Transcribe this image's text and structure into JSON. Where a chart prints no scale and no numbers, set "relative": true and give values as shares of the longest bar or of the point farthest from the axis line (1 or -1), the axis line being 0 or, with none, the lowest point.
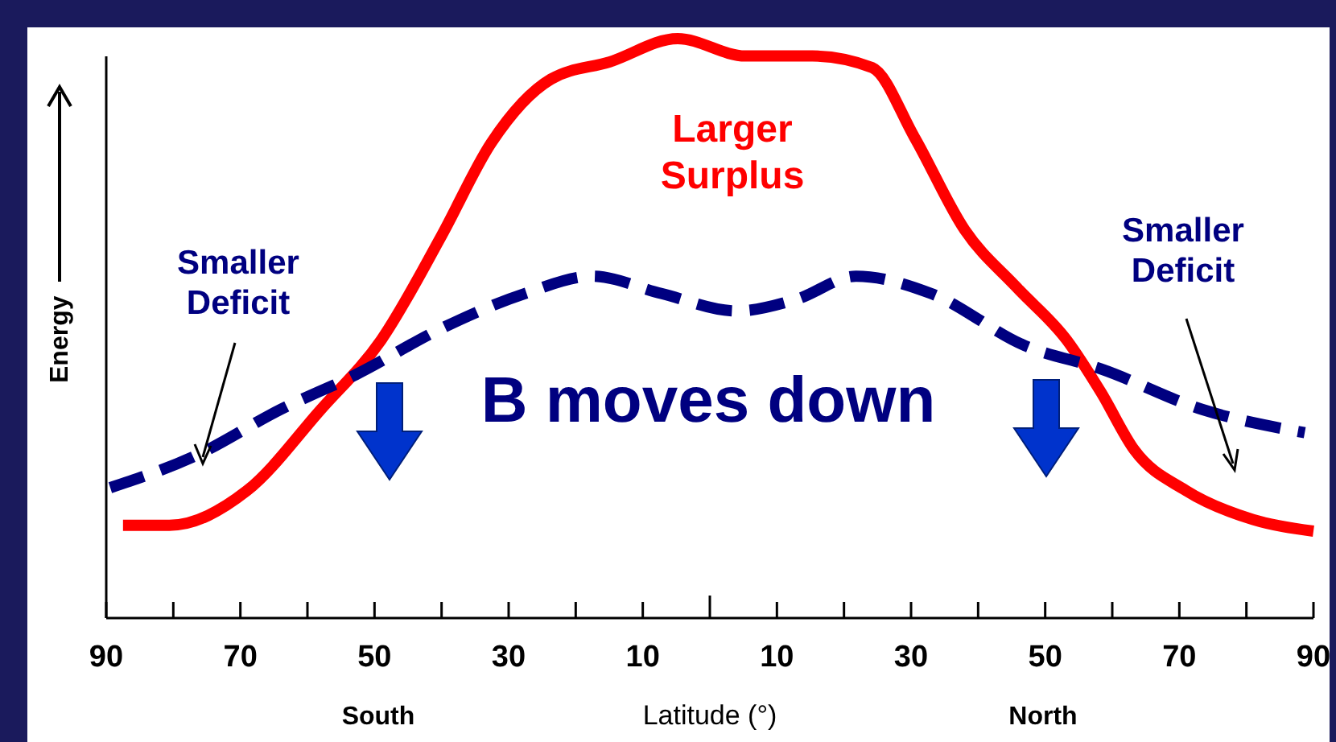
{
  "chart_data": {
    "type": "line",
    "relative": true,
    "xlabel": "Latitude (°)",
    "ylabel": "Energy",
    "xlim": [
      -90,
      90
    ],
    "xticks": [
      {
        "value": -90,
        "label": "90"
      },
      {
        "value": -80,
        "label": null
      },
      {
        "value": -70,
        "label": "70"
      },
      {
        "value": -60,
        "label": null
      },
      {
        "value": -50,
        "label": "50"
      },
      {
        "value": -40,
        "label": null
      },
      {
        "value": -30,
        "label": "30"
      },
      {
        "value": -20,
        "label": null
      },
      {
        "value": -10,
        "label": "10"
      },
      {
        "value": 0,
        "label": null
      },
      {
        "value": 10,
        "label": "10"
      },
      {
        "value": 20,
        "label": null
      },
      {
        "value": 30,
        "label": "30"
      },
      {
        "value": 40,
        "label": null
      },
      {
        "value": 50,
        "label": "50"
      },
      {
        "value": 60,
        "label": null
      },
      {
        "value": 70,
        "label": "70"
      },
      {
        "value": 80,
        "label": null
      },
      {
        "value": 90,
        "label": "90"
      }
    ],
    "series": [
      {
        "color": "#ff0000",
        "line_style": "solid",
        "x": [
          -87.5,
          -80.6,
          -69,
          -58,
          -49,
          -40,
          -32.6,
          -23.7,
          -14.9,
          -4.8,
          5.3,
          15.3,
          24.2,
          30.5,
          38,
          45.8,
          53.2,
          58.3,
          63.3,
          71,
          81,
          90
        ],
        "values": [
          0.16,
          0.16,
          0.22,
          0.36,
          0.48,
          0.66,
          0.82,
          0.93,
          0.96,
          1.0,
          0.97,
          0.97,
          0.95,
          0.83,
          0.67,
          0.57,
          0.48,
          0.39,
          0.29,
          0.22,
          0.17,
          0.15
        ]
      },
      {
        "color": "#000080",
        "line_style": "dashed",
        "x": [
          -89.4,
          -76.7,
          -64,
          -52.8,
          -40,
          -27.6,
          -17.5,
          -7.2,
          4,
          12.9,
          21.8,
          33,
          47,
          58.3,
          73.4,
          88.7
        ],
        "values": [
          0.225,
          0.28,
          0.36,
          0.42,
          0.5,
          0.56,
          0.59,
          0.56,
          0.53,
          0.55,
          0.59,
          0.56,
          0.47,
          0.43,
          0.36,
          0.32
        ]
      }
    ],
    "annotations": [
      "Larger Surplus",
      "Smaller Deficit",
      "Smaller Deficit",
      "B moves down",
      "South",
      "North"
    ],
    "grid": false
  }
}
